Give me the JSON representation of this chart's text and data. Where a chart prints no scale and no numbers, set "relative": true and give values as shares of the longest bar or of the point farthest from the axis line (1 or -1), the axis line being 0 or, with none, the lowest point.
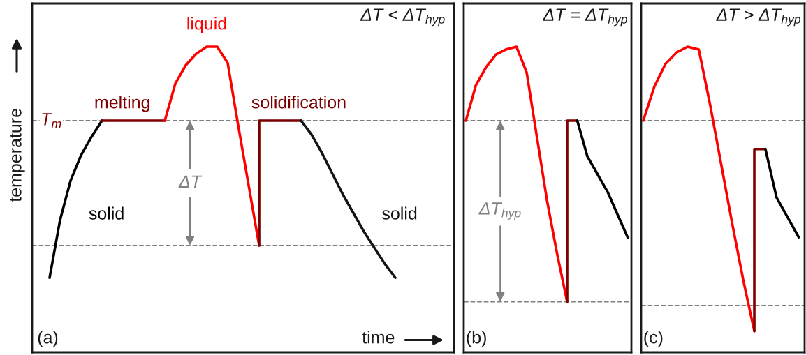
{
  "chart_data": [
    {
      "type": "line",
      "relative": true,
      "title": "ΔT < ΔT$_{hyp}$",
      "xlabel": "time",
      "ylabel": "temperature",
      "line_style": "solid",
      "categories": [
        null,
        null,
        null,
        null,
        null,
        null,
        null,
        null,
        null,
        null,
        null,
        null,
        null,
        null,
        null,
        null,
        null,
        null,
        null,
        null,
        null,
        null,
        null,
        null,
        null,
        null,
        null,
        null,
        null,
        null,
        null,
        null,
        null,
        null
      ],
      "series": [
        {
          "name": "solid",
          "color": "#000000",
          "values": [
            0.0,
            0.25,
            0.42,
            0.53,
            0.61,
            0.68,
            null,
            null,
            null,
            null,
            null,
            null,
            null,
            null,
            null,
            null,
            null,
            null,
            null,
            null,
            null,
            null,
            null,
            null,
            null,
            null,
            null,
            null,
            null,
            null,
            null,
            null,
            null,
            null
          ]
        },
        {
          "name": "melting",
          "color": "#800000",
          "values": [
            null,
            null,
            null,
            null,
            null,
            0.68,
            0.68,
            0.68,
            0.68,
            0.68,
            0.68,
            0.68,
            null,
            null,
            null,
            null,
            null,
            null,
            null,
            null,
            null,
            null,
            null,
            null,
            null,
            null,
            null,
            null,
            null,
            null,
            null,
            null,
            null,
            null
          ]
        },
        {
          "name": "liquid",
          "color": "#ff0000",
          "values": [
            null,
            null,
            null,
            null,
            null,
            null,
            null,
            null,
            null,
            null,
            null,
            0.68,
            0.84,
            0.92,
            0.97,
            1.0,
            1.0,
            0.93,
            0.66,
            0.4,
            0.14,
            null,
            null,
            null,
            null,
            null,
            null,
            null,
            null,
            null,
            null,
            null,
            null,
            null
          ]
        },
        {
          "name": "solidification",
          "type": "step",
          "color": "#7a0000",
          "values": [
            null,
            null,
            null,
            null,
            null,
            null,
            null,
            null,
            null,
            null,
            null,
            null,
            null,
            null,
            null,
            null,
            null,
            null,
            null,
            null,
            0.14,
            0.68,
            0.68,
            0.68,
            0.68,
            null,
            null,
            null,
            null,
            null,
            null,
            null,
            null,
            null
          ]
        },
        {
          "name": "solid",
          "color": "#141414",
          "values": [
            null,
            null,
            null,
            null,
            null,
            null,
            null,
            null,
            null,
            null,
            null,
            null,
            null,
            null,
            null,
            null,
            null,
            null,
            null,
            null,
            null,
            null,
            null,
            null,
            0.68,
            0.62,
            0.54,
            0.45,
            0.36,
            0.28,
            0.2,
            0.13,
            0.06,
            0.0
          ]
        }
      ],
      "ref_lines": [
        {
          "axis": "y",
          "value": 0.68,
          "label": "T$_{m}$",
          "color": "#808080",
          "line_style": "dashed"
        },
        {
          "axis": "y",
          "value": 0.14,
          "color": "#808080",
          "line_style": "dashed"
        }
      ],
      "annotations": [
        "ΔT",
        "(a)"
      ]
    },
    {
      "type": "line",
      "relative": true,
      "title": "ΔT = ΔT$_{hyp}$",
      "line_style": "solid",
      "categories": [
        null,
        null,
        null,
        null,
        null,
        null,
        null,
        null,
        null,
        null,
        null,
        null,
        null,
        null,
        null,
        null,
        null
      ],
      "series": [
        {
          "color": "#ff0000",
          "values": [
            0.71,
            0.85,
            0.92,
            0.97,
            0.99,
            1.0,
            0.9,
            0.65,
            0.4,
            0.19,
            0.0,
            null,
            null,
            null,
            null,
            null,
            null
          ]
        },
        {
          "type": "step",
          "color": "#800000",
          "values": [
            null,
            null,
            null,
            null,
            null,
            null,
            null,
            null,
            null,
            null,
            0.0,
            0.71,
            null,
            null,
            null,
            null,
            null
          ]
        },
        {
          "color": "#000000",
          "values": [
            null,
            null,
            null,
            null,
            null,
            null,
            null,
            null,
            null,
            null,
            null,
            0.71,
            0.57,
            0.5,
            0.43,
            0.34,
            0.25
          ]
        }
      ],
      "ref_lines": [
        {
          "axis": "y",
          "value": 0.71,
          "color": "#808080",
          "line_style": "dashed"
        },
        {
          "axis": "y",
          "value": 0.0,
          "color": "#808080",
          "line_style": "dashed"
        }
      ],
      "annotations": [
        "ΔT$_{hyp}$",
        "(b)"
      ]
    },
    {
      "type": "line",
      "relative": true,
      "title": "ΔT > ΔT$_{hyp}$",
      "line_style": "solid",
      "categories": [
        null,
        null,
        null,
        null,
        null,
        null,
        null,
        null,
        null,
        null,
        null,
        null,
        null,
        null,
        null
      ],
      "series": [
        {
          "color": "#ff0000",
          "values": [
            0.74,
            0.86,
            0.94,
            0.98,
            1.0,
            0.99,
            0.8,
            0.59,
            0.38,
            0.18,
            0.0,
            null,
            null,
            null,
            null
          ]
        },
        {
          "type": "step",
          "color": "#800000",
          "values": [
            null,
            null,
            null,
            null,
            null,
            null,
            null,
            null,
            null,
            null,
            0.0,
            0.64,
            null,
            null,
            null
          ]
        },
        {
          "color": "#000000",
          "values": [
            null,
            null,
            null,
            null,
            null,
            null,
            null,
            null,
            null,
            null,
            null,
            0.64,
            0.47,
            0.4,
            0.33
          ]
        }
      ],
      "ref_lines": [
        {
          "axis": "y",
          "value": 0.74,
          "color": "#808080",
          "line_style": "dashed"
        },
        {
          "axis": "y",
          "value": 0.09,
          "color": "#808080",
          "line_style": "dashed"
        }
      ],
      "annotations": [
        "(c)"
      ]
    }
  ]
}
